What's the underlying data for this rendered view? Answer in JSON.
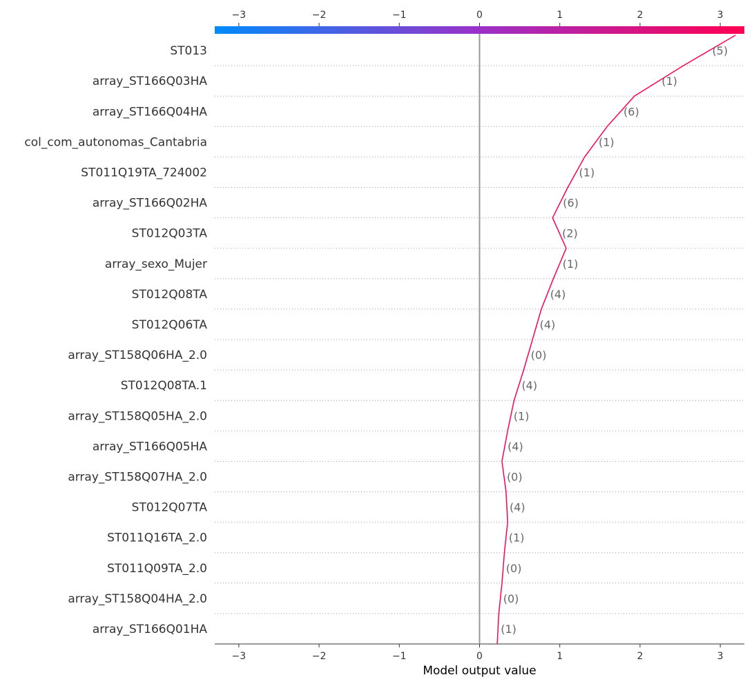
{
  "chart_data": {
    "type": "line",
    "chart_subtype": "decision_plot",
    "title": "",
    "xlabel": "Model output value",
    "ylabel": "",
    "xlim": [
      -3.3,
      3.3
    ],
    "xticks": [
      -3,
      -2,
      -1,
      0,
      1,
      2,
      3
    ],
    "base_value": 0,
    "grid": "dotted horizontal row separators",
    "line_color": "#ff0052",
    "colorbar": {
      "position": "top",
      "color_low": "#008bfb",
      "color_mid": "#9b30c8",
      "color_high": "#ff0052"
    },
    "features": [
      {
        "name": "ST013",
        "value_label": "(5)"
      },
      {
        "name": "array_ST166Q03HA",
        "value_label": "(1)"
      },
      {
        "name": "array_ST166Q04HA",
        "value_label": "(6)"
      },
      {
        "name": "col_com_autonomas_Cantabria",
        "value_label": "(1)"
      },
      {
        "name": "ST011Q19TA_724002",
        "value_label": "(1)"
      },
      {
        "name": "array_ST166Q02HA",
        "value_label": "(6)"
      },
      {
        "name": "ST012Q03TA",
        "value_label": "(2)"
      },
      {
        "name": "array_sexo_Mujer",
        "value_label": "(1)"
      },
      {
        "name": "ST012Q08TA",
        "value_label": "(4)"
      },
      {
        "name": "ST012Q06TA",
        "value_label": "(4)"
      },
      {
        "name": "array_ST158Q06HA_2.0",
        "value_label": "(0)"
      },
      {
        "name": "ST012Q08TA.1",
        "value_label": "(4)"
      },
      {
        "name": "array_ST158Q05HA_2.0",
        "value_label": "(1)"
      },
      {
        "name": "array_ST166Q05HA",
        "value_label": "(4)"
      },
      {
        "name": "array_ST158Q07HA_2.0",
        "value_label": "(0)"
      },
      {
        "name": "ST012Q07TA",
        "value_label": "(4)"
      },
      {
        "name": "ST011Q16TA_2.0",
        "value_label": "(1)"
      },
      {
        "name": "ST011Q09TA_2.0",
        "value_label": "(0)"
      },
      {
        "name": "array_ST158Q04HA_2.0",
        "value_label": "(0)"
      },
      {
        "name": "array_ST166Q01HA",
        "value_label": "(1)"
      }
    ],
    "cumulative_values_bottom_to_top": [
      0.22,
      0.24,
      0.28,
      0.31,
      0.35,
      0.33,
      0.28,
      0.35,
      0.43,
      0.55,
      0.66,
      0.77,
      0.92,
      1.08,
      0.91,
      1.1,
      1.31,
      1.59,
      1.93,
      2.54,
      3.19
    ]
  }
}
